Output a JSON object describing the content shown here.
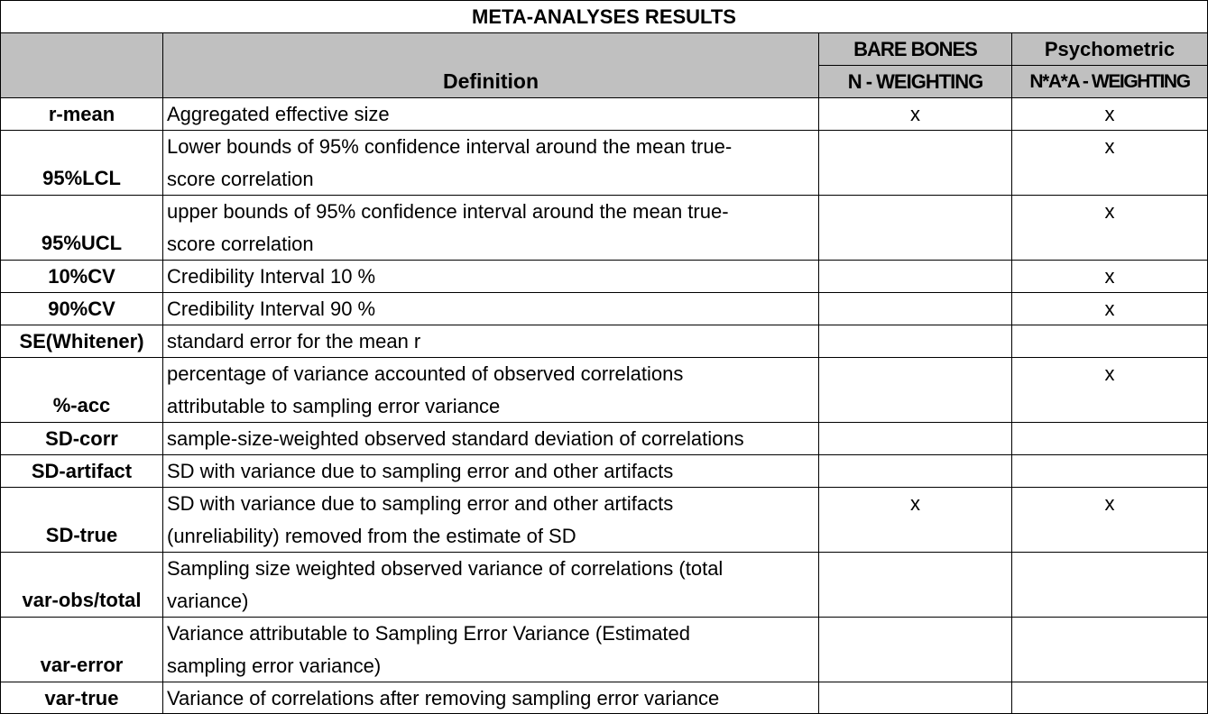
{
  "title": "META-ANALYSES RESULTS",
  "header": {
    "definition": "Definition",
    "col1_top": "BARE BONES",
    "col1_bottom": "N - WEIGHTING",
    "col2_top": "Psychometric",
    "col2_bottom": "N*A*A - WEIGHTING"
  },
  "rows": [
    {
      "name": "r-mean",
      "def1": "Aggregated effective size",
      "def2": "",
      "bare": "x",
      "psy": "x"
    },
    {
      "name": "95%LCL",
      "def1": "Lower bounds of 95% confidence interval around the mean true-",
      "def2": "score correlation",
      "bare": "",
      "psy": "x"
    },
    {
      "name": "95%UCL",
      "def1": "upper bounds of 95% confidence interval around the mean true-",
      "def2": "score correlation",
      "bare": "",
      "psy": "x"
    },
    {
      "name": "10%CV",
      "def1": "Credibility Interval 10 %",
      "def2": "",
      "bare": "",
      "psy": "x"
    },
    {
      "name": "90%CV",
      "def1": "Credibility Interval 90 %",
      "def2": "",
      "bare": "",
      "psy": "x"
    },
    {
      "name": "SE(Whitener)",
      "def1": "standard error for the mean r",
      "def2": "",
      "bare": "",
      "psy": ""
    },
    {
      "name": "%-acc",
      "def1": "percentage of variance accounted of observed correlations",
      "def2": "attributable to sampling error variance",
      "bare": "",
      "psy": "x"
    },
    {
      "name": "SD-corr",
      "def1": "sample-size-weighted observed standard deviation of correlations",
      "def2": "",
      "bare": "",
      "psy": ""
    },
    {
      "name": "SD-artifact",
      "def1": "SD with variance due to sampling error and other artifacts",
      "def2": "",
      "bare": "",
      "psy": ""
    },
    {
      "name": "SD-true",
      "def1": "SD with variance due to sampling error and other artifacts",
      "def2": "(unreliability) removed from the estimate of SD",
      "bare": "x",
      "psy": "x"
    },
    {
      "name": "var-obs/total",
      "def1": "Sampling size weighted observed variance of correlations (total",
      "def2": "variance)",
      "bare": "",
      "psy": ""
    },
    {
      "name": "var-error",
      "def1": "Variance attributable to Sampling Error Variance (Estimated",
      "def2": "sampling error variance)",
      "bare": "",
      "psy": ""
    },
    {
      "name": "var-true",
      "def1": "Variance of correlations after removing sampling error variance",
      "def2": "",
      "bare": "",
      "psy": ""
    }
  ]
}
